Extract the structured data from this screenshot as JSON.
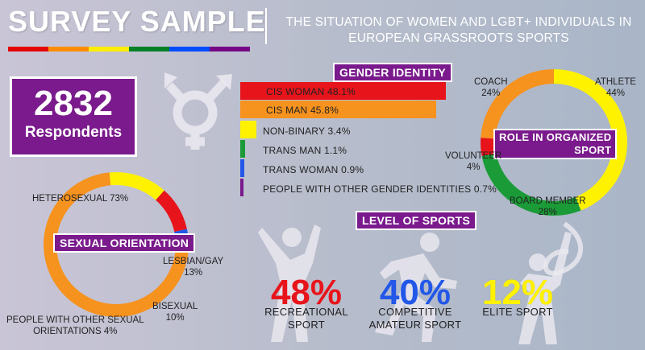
{
  "header": {
    "title": "SURVEY SAMPLE",
    "subtitle_line1": "THE SITUATION OF WOMEN AND LGBT+ INDIVIDUALS IN",
    "subtitle_line2": "EUROPEAN GRASSROOTS SPORTS",
    "rainbow_colors": [
      "#e40303",
      "#ff8c00",
      "#ffed00",
      "#008026",
      "#004dff",
      "#750787"
    ]
  },
  "respondents": {
    "count": "2832",
    "label": "Respondents"
  },
  "gender_identity": {
    "label": "GENDER IDENTITY",
    "items": [
      {
        "text": "CIS WOMAN 48.1%",
        "value": 48.1,
        "color": "#e8141b"
      },
      {
        "text": "CIS MAN 45.8%",
        "value": 45.8,
        "color": "#f6921e"
      },
      {
        "text": "NON-BINARY 3.4%",
        "value": 3.4,
        "color": "#fff200"
      },
      {
        "text": "TRANS MAN 1.1%",
        "value": 1.1,
        "color": "#1a9b37"
      },
      {
        "text": "TRANS WOMAN 0.9%",
        "value": 0.9,
        "color": "#2257e8"
      },
      {
        "text": "PEOPLE WITH OTHER GENDER IDENTITIES 0.7%",
        "value": 0.7,
        "color": "#7a1a8c"
      }
    ]
  },
  "role": {
    "label_line1": "ROLE IN ORGANIZED",
    "label_line2": "SPORT",
    "items": [
      {
        "name": "ATHLETE",
        "pct": "44%",
        "value": 44,
        "color": "#fff200"
      },
      {
        "name": "BOARD MEMBER",
        "pct": "28%",
        "value": 28,
        "color": "#1a9b37"
      },
      {
        "name": "VOLUNTEER",
        "pct": "4%",
        "value": 4,
        "color": "#e8141b"
      },
      {
        "name": "COACH",
        "pct": "24%",
        "value": 24,
        "color": "#f6921e"
      }
    ]
  },
  "orientation": {
    "label": "SEXUAL ORIENTATION",
    "items": [
      {
        "name": "HETEROSEXUAL",
        "pct": "73%",
        "value": 73,
        "color": "#f6921e"
      },
      {
        "name": "LESBIAN/GAY",
        "pct": "13%",
        "value": 13,
        "color": "#fff200"
      },
      {
        "name": "BISEXUAL",
        "pct": "10%",
        "value": 10,
        "color": "#e8141b"
      },
      {
        "name": "PEOPLE WITH OTHER SEXUAL",
        "name2": "ORIENTATIONS",
        "pct": "4%",
        "value": 4,
        "color": "#2257e8"
      }
    ]
  },
  "level": {
    "label": "LEVEL OF SPORTS",
    "items": [
      {
        "pct": "48%",
        "line1": "RECREATIONAL",
        "line2": "SPORT",
        "color": "#e8141b"
      },
      {
        "pct": "40%",
        "line1": "COMPETITIVE",
        "line2": "AMATEUR SPORT",
        "color": "#2257e8"
      },
      {
        "pct": "12%",
        "line1": "ELITE SPORT",
        "line2": "",
        "color": "#fff200"
      }
    ]
  },
  "icons": [
    "gender-symbol-icon",
    "athlete-icon",
    "runner-icon",
    "gymnast-ribbon-icon"
  ]
}
